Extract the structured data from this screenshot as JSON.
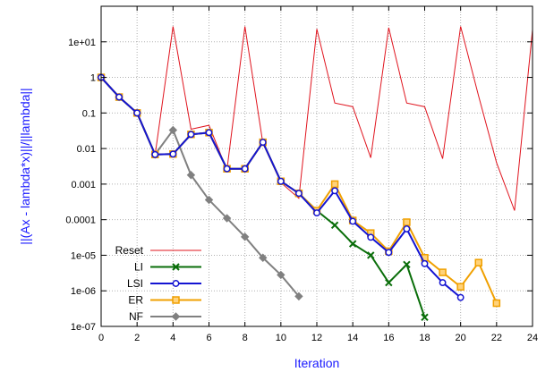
{
  "chart_data": {
    "type": "line",
    "title": "",
    "xlabel": "Iteration",
    "ylabel": "||(Ax - lambda*x)||/||lambda||",
    "xlim": [
      0,
      24
    ],
    "ylim": [
      1e-07,
      100.0
    ],
    "yscale": "log",
    "x_ticks": [
      0,
      2,
      4,
      6,
      8,
      10,
      12,
      14,
      16,
      18,
      20,
      22,
      24
    ],
    "x_tick_labels": [
      "0",
      "2",
      "4",
      "6",
      "8",
      "10",
      "12",
      "14",
      "16",
      "18",
      "20",
      "22",
      "24"
    ],
    "y_ticks": [
      1e-07,
      1e-06,
      1e-05,
      0.0001,
      0.001,
      0.01,
      0.1,
      1,
      10
    ],
    "y_tick_labels": [
      "1e-07",
      "1e-06",
      "1e-05",
      "0.0001",
      "0.001",
      "0.01",
      "0.1",
      "1",
      "1e+01"
    ],
    "grid": true,
    "legend_position": "bottom-left",
    "series": [
      {
        "name": "Reset",
        "color": "#e0141e",
        "marker": "none",
        "x": [
          0,
          1,
          2,
          3,
          4,
          5,
          6,
          7,
          8,
          9,
          10,
          11,
          12,
          13,
          14,
          15,
          16,
          17,
          18,
          19,
          20,
          21,
          22,
          23,
          24
        ],
        "y": [
          1,
          0.28,
          0.1,
          0.0065,
          27,
          0.035,
          0.045,
          0.0025,
          27,
          0.014,
          0.0011,
          0.0004,
          23,
          0.19,
          0.15,
          0.0055,
          25,
          0.19,
          0.15,
          0.0052,
          27,
          0.3,
          0.004,
          0.00018,
          22
        ]
      },
      {
        "name": "LI",
        "color": "#0a6e0a",
        "marker": "x",
        "x": [
          0,
          1,
          2,
          3,
          4,
          5,
          6,
          7,
          8,
          9,
          10,
          11,
          12,
          13,
          14,
          15,
          16,
          17,
          18
        ],
        "y": [
          1,
          0.28,
          0.1,
          0.0068,
          0.007,
          0.025,
          0.028,
          0.0027,
          0.0027,
          0.015,
          0.0012,
          0.00055,
          0.00018,
          7e-05,
          2.1e-05,
          1e-05,
          1.7e-06,
          5.5e-06,
          1.8e-07
        ]
      },
      {
        "name": "LSI",
        "color": "#1414d2",
        "marker": "circle",
        "x": [
          0,
          1,
          2,
          3,
          4,
          5,
          6,
          7,
          8,
          9,
          10,
          11,
          12,
          13,
          14,
          15,
          16,
          17,
          18,
          19,
          20
        ],
        "y": [
          1,
          0.28,
          0.1,
          0.0068,
          0.007,
          0.025,
          0.028,
          0.0027,
          0.0027,
          0.015,
          0.0012,
          0.00055,
          0.000155,
          0.00065,
          9e-05,
          3.2e-05,
          1.2e-05,
          5.5e-05,
          5.8e-06,
          1.7e-06,
          6.5e-07
        ]
      },
      {
        "name": "ER",
        "color": "#f0a000",
        "marker": "square",
        "x": [
          0,
          1,
          2,
          3,
          4,
          5,
          6,
          7,
          8,
          9,
          10,
          11,
          12,
          13,
          14,
          15,
          16,
          17,
          18,
          19,
          20,
          21,
          22
        ],
        "y": [
          1,
          0.28,
          0.1,
          0.0068,
          0.007,
          0.025,
          0.028,
          0.0027,
          0.0027,
          0.015,
          0.0012,
          0.00055,
          0.00018,
          0.001,
          9.5e-05,
          4.2e-05,
          1.3e-05,
          8.5e-05,
          8.5e-06,
          3.3e-06,
          1.3e-06,
          6.2e-06,
          4.5e-07
        ]
      },
      {
        "name": "NF",
        "color": "#808080",
        "marker": "diamond",
        "x": [
          0,
          1,
          2,
          3,
          4,
          5,
          6,
          7,
          8,
          9,
          10,
          11
        ],
        "y": [
          1,
          0.28,
          0.1,
          0.0068,
          0.033,
          0.0018,
          0.00036,
          0.00011,
          3.3e-05,
          8.5e-06,
          2.8e-06,
          7e-07
        ]
      }
    ]
  }
}
